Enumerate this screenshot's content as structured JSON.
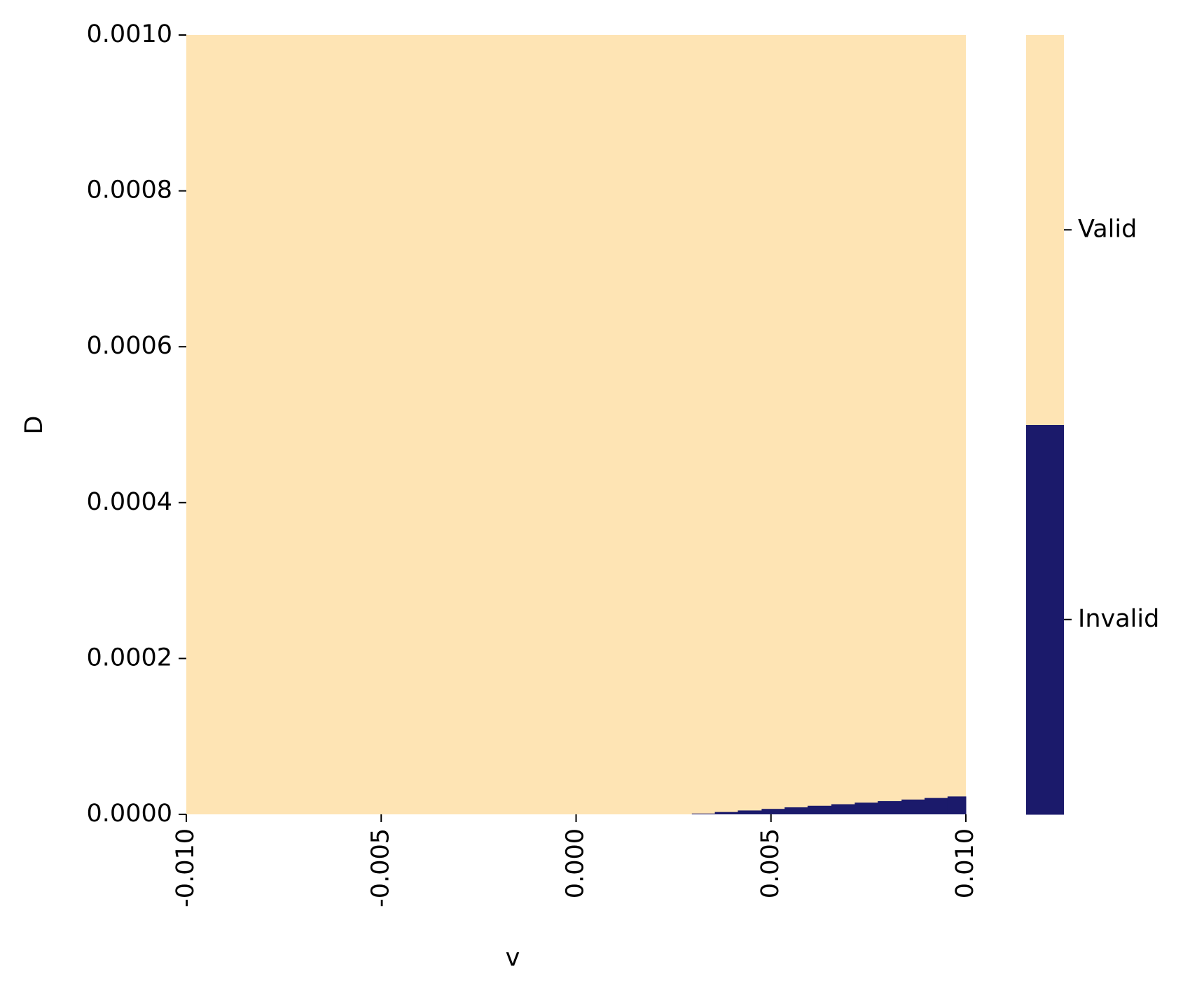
{
  "chart_data": {
    "type": "heatmap",
    "xlabel": "v",
    "ylabel": "D",
    "xlim": [
      -0.01,
      0.01
    ],
    "ylim": [
      0,
      0.001
    ],
    "xticks": [
      {
        "value": -0.01,
        "label": "-0.010"
      },
      {
        "value": -0.005,
        "label": "-0.005"
      },
      {
        "value": 0,
        "label": "0.000"
      },
      {
        "value": 0.005,
        "label": "0.005"
      },
      {
        "value": 0.01,
        "label": "0.010"
      }
    ],
    "yticks": [
      {
        "value": 0,
        "label": "0.0000"
      },
      {
        "value": 0.0002,
        "label": "0.0002"
      },
      {
        "value": 0.0004,
        "label": "0.0004"
      },
      {
        "value": 0.0006,
        "label": "0.0006"
      },
      {
        "value": 0.0008,
        "label": "0.0008"
      },
      {
        "value": 0.001,
        "label": "0.0010"
      }
    ],
    "categories": [
      "Invalid",
      "Valid"
    ],
    "colors": [
      "#1b1a6b",
      "#fee4b4"
    ],
    "background_category": 1,
    "invalid_region": {
      "edges": [
        0.00297,
        0.00356,
        0.00415,
        0.00476,
        0.00535,
        0.00594,
        0.00655,
        0.00715,
        0.00774,
        0.00835,
        0.00894,
        0.00953,
        0.01
      ],
      "heights": [
        1e-06,
        3e-06,
        5e-06,
        7e-06,
        9e-06,
        1.1e-05,
        1.3e-05,
        1.5e-05,
        1.7e-05,
        1.9e-05,
        2.1e-05,
        2.3e-05
      ]
    }
  }
}
